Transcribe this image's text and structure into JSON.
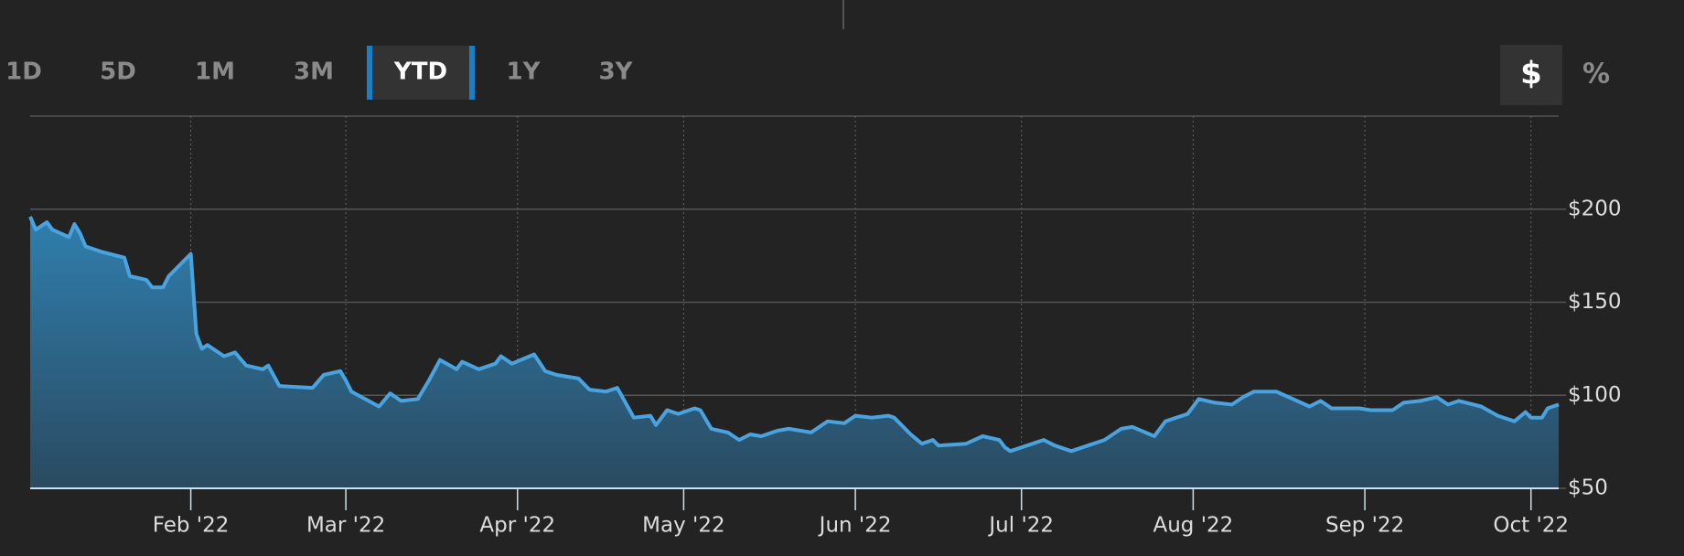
{
  "range_buttons": {
    "options": [
      "1D",
      "5D",
      "1M",
      "3M",
      "YTD",
      "1Y",
      "3Y"
    ],
    "selected": 4
  },
  "unit_buttons": {
    "options": [
      "$",
      "%"
    ],
    "selected": 0
  },
  "chart_data": {
    "type": "area",
    "color": "#4aa3df",
    "grid": true,
    "x": [
      3,
      4,
      6,
      7,
      10,
      11,
      12,
      13,
      16,
      20,
      21,
      24,
      25,
      27,
      28,
      32,
      33,
      34,
      35,
      38,
      40,
      42,
      45,
      46,
      48,
      54,
      56,
      59,
      60,
      61,
      66,
      68,
      70,
      73,
      75,
      77,
      80,
      81,
      84,
      87,
      88,
      90,
      94,
      96,
      98,
      102,
      104,
      107,
      109,
      112,
      115,
      116,
      118,
      120,
      123,
      124,
      126,
      129,
      131,
      133,
      135,
      138,
      140,
      144,
      147,
      150,
      152,
      155,
      158,
      159,
      162,
      164,
      166,
      167,
      172,
      175,
      178,
      179,
      180,
      183,
      186,
      188,
      191,
      194,
      197,
      200,
      202,
      206,
      208,
      212,
      214,
      217,
      220,
      222,
      224,
      228,
      231,
      234,
      236,
      238,
      242,
      243,
      245,
      249,
      251,
      254,
      257,
      259,
      261,
      265,
      268,
      271,
      273,
      274,
      276,
      277,
      279
    ],
    "values": [
      196,
      189,
      193,
      189,
      185,
      192,
      187,
      180,
      177,
      174,
      164,
      162,
      158,
      158,
      164,
      176,
      133,
      125,
      127,
      121,
      123,
      116,
      114,
      116,
      105,
      104,
      111,
      113,
      108,
      102,
      94,
      101,
      97,
      98,
      108,
      119,
      114,
      118,
      114,
      117,
      121,
      117,
      122,
      113,
      111,
      109,
      103,
      102,
      104,
      88,
      89,
      84,
      92,
      90,
      93,
      92,
      82,
      80,
      76,
      79,
      78,
      81,
      82,
      80,
      86,
      85,
      89,
      88,
      89,
      88,
      79,
      74,
      76,
      73,
      74,
      78,
      76,
      72,
      70,
      73,
      76,
      73,
      70,
      73,
      76,
      82,
      83,
      78,
      86,
      90,
      98,
      96,
      95,
      99,
      102,
      102,
      98,
      94,
      97,
      93,
      93,
      93,
      92,
      92,
      96,
      97,
      99,
      95,
      97,
      94,
      89,
      86,
      91,
      88,
      88,
      93,
      95
    ],
    "xlim": [
      3,
      279
    ],
    "ylim": [
      50,
      250
    ],
    "xticks": [
      {
        "value": 32,
        "label": "Feb '22"
      },
      {
        "value": 60,
        "label": "Mar '22"
      },
      {
        "value": 91,
        "label": "Apr '22"
      },
      {
        "value": 121,
        "label": "May '22"
      },
      {
        "value": 152,
        "label": "Jun '22"
      },
      {
        "value": 182,
        "label": "Jul '22"
      },
      {
        "value": 213,
        "label": "Aug '22"
      },
      {
        "value": 244,
        "label": "Sep '22"
      },
      {
        "value": 274,
        "label": "Oct '22"
      }
    ],
    "yticks": [
      {
        "value": 50,
        "label": "$50"
      },
      {
        "value": 100,
        "label": "$100"
      },
      {
        "value": 150,
        "label": "$150"
      },
      {
        "value": 200,
        "label": "$200"
      }
    ]
  }
}
